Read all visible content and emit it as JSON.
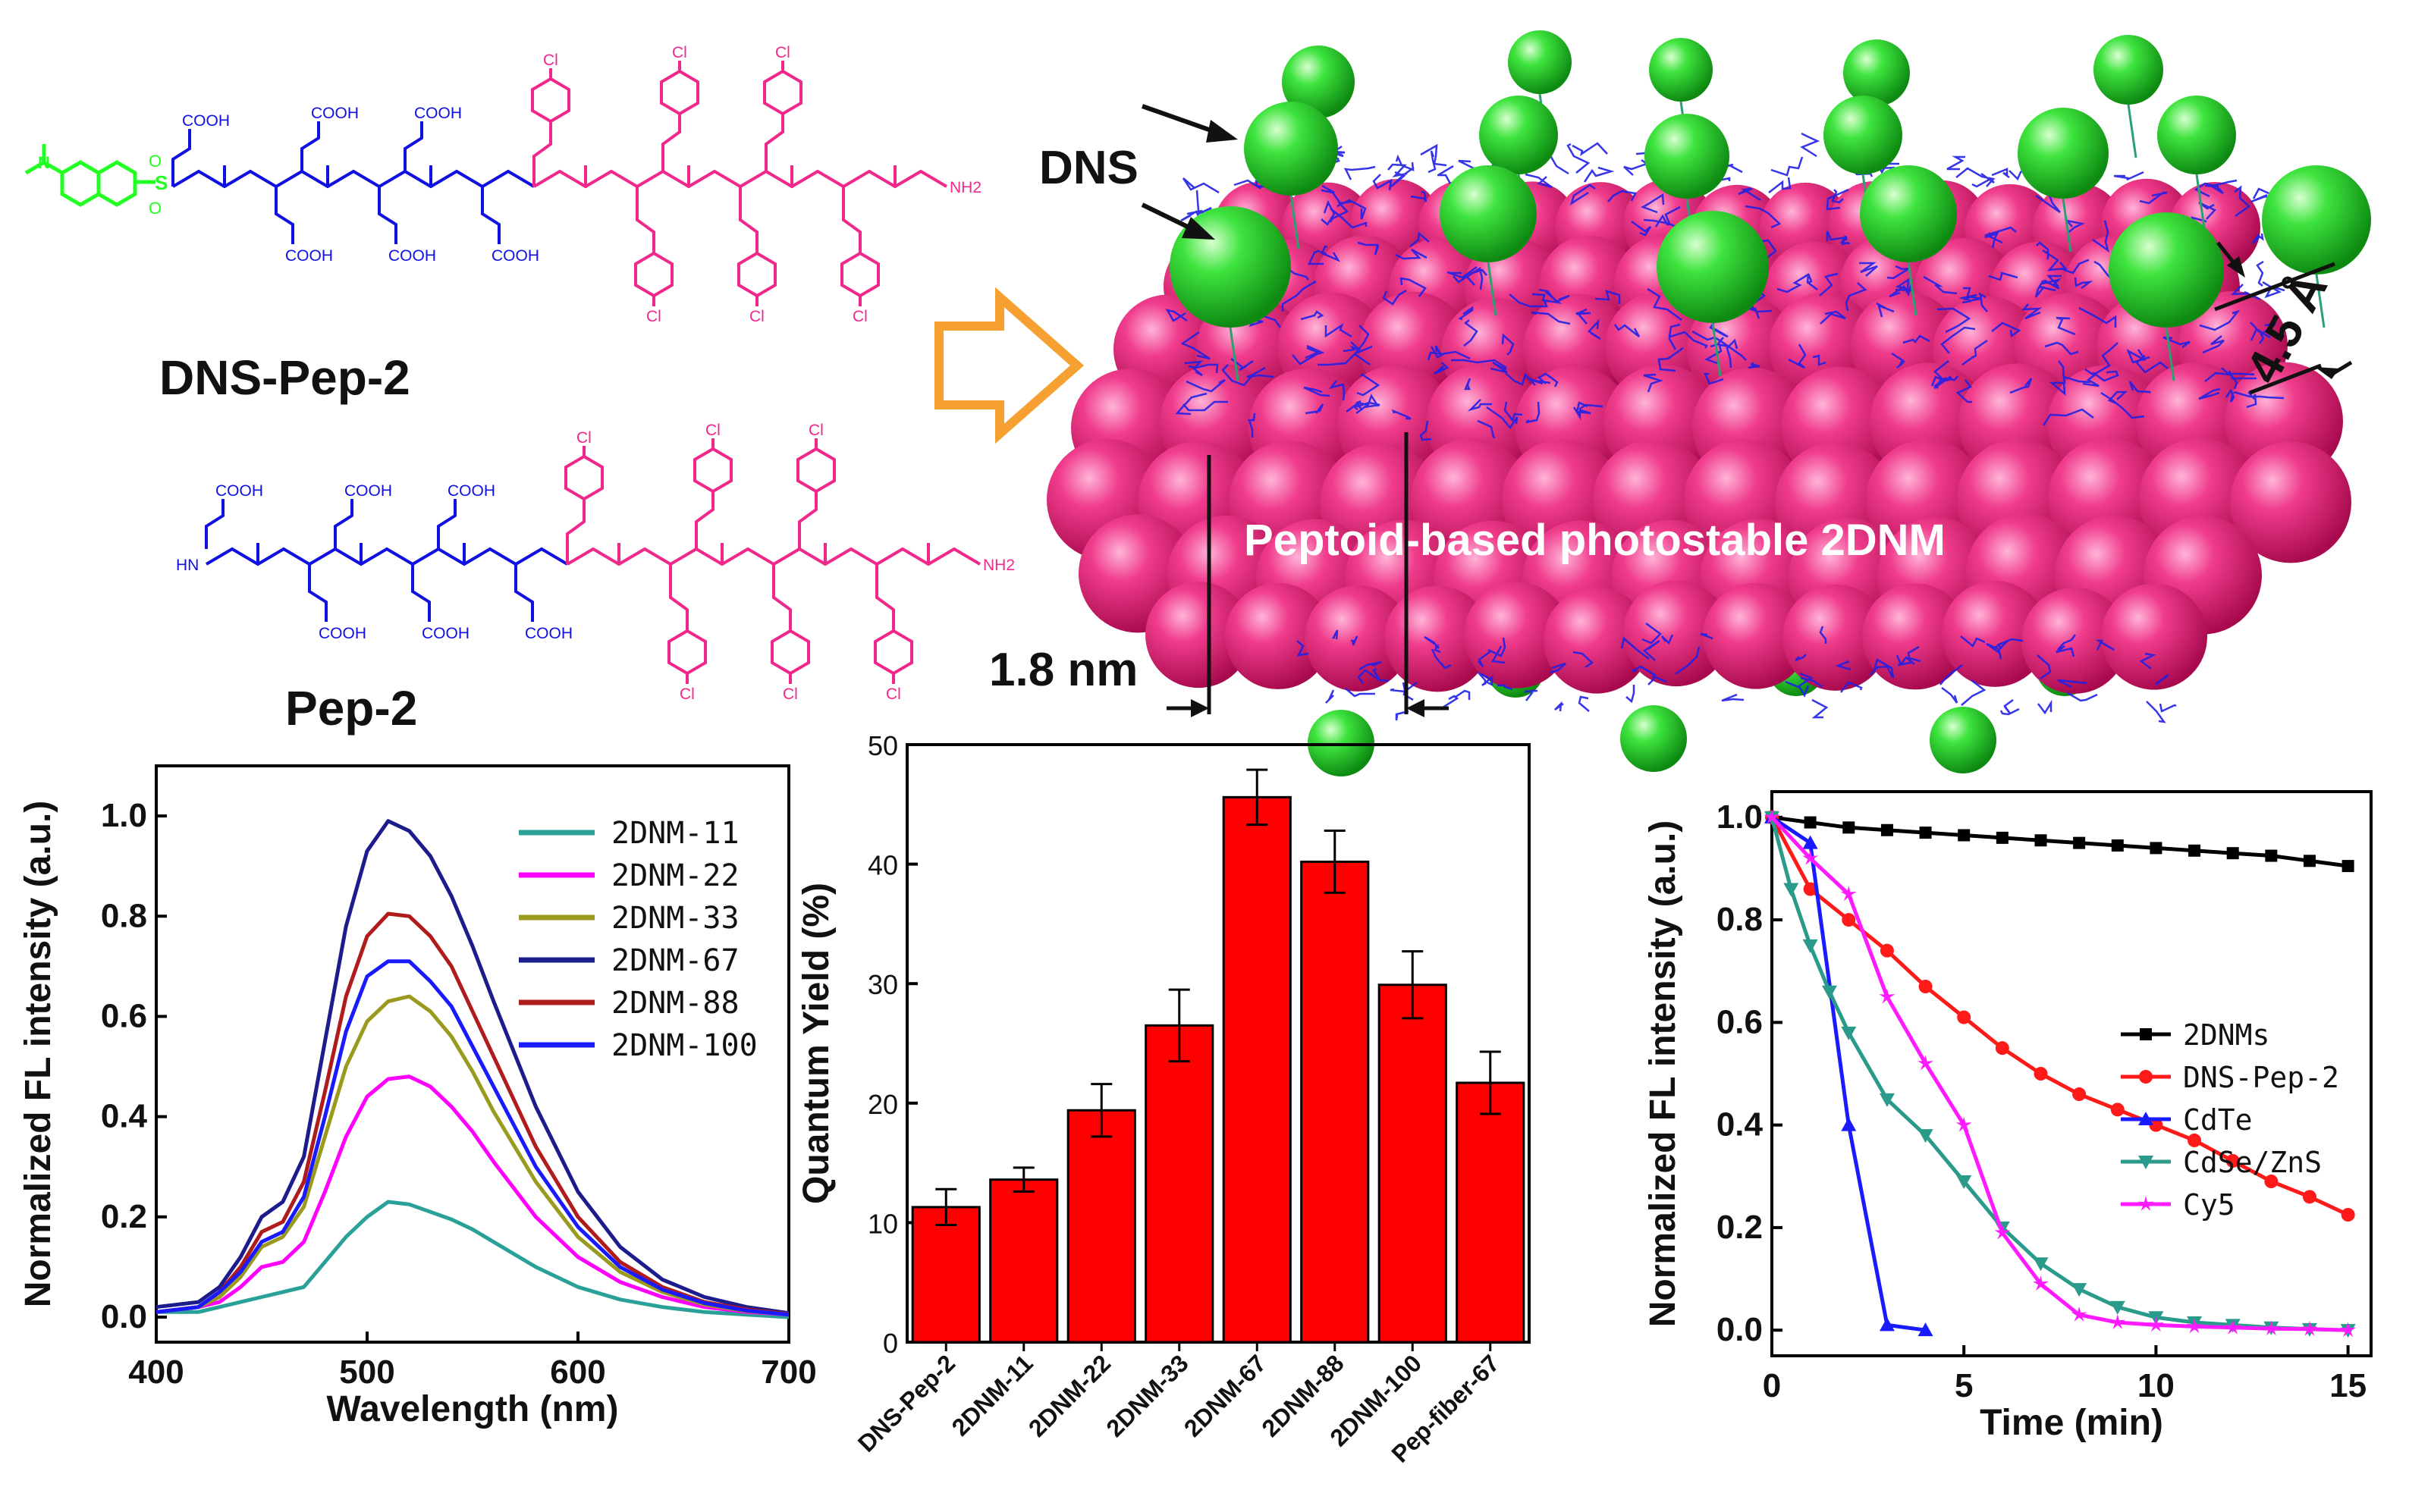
{
  "labels": {
    "dns_pep2_name": "DNS-Pep-2",
    "pep2_name": "Pep-2",
    "dns_callout": "DNS",
    "membrane_title": "Peptoid-based photostable 2DNM",
    "thickness_label": "1.8 nm",
    "spacing_label": "4.5 Å",
    "chem": {
      "cooh": "COOH",
      "nh2": "NH2",
      "cl": "Cl",
      "o": "O",
      "n": "N",
      "s": "S",
      "hn": "HN"
    }
  },
  "colors": {
    "dns_green": "#22ff22",
    "peptoid_blue": "#1010e0",
    "chloro_pink": "#f0288c",
    "membrane_pink": "#e0156e",
    "sphere_green": "#28c828",
    "arrow_orange": "#f5a030",
    "bar_red": "#ff0000"
  },
  "chart_data": [
    {
      "type": "line",
      "id": "fl-spectra",
      "xlabel": "Wavelength (nm)",
      "ylabel": "Normalized FL intensity (a.u.)",
      "xlim": [
        400,
        700
      ],
      "ylim": [
        -0.05,
        1.1
      ],
      "xticks": [
        400,
        500,
        600,
        700
      ],
      "yticks": [
        0.0,
        0.2,
        0.4,
        0.6,
        0.8,
        1.0
      ],
      "legend_position": "top-right",
      "x": [
        400,
        420,
        430,
        440,
        450,
        460,
        470,
        480,
        490,
        500,
        510,
        520,
        530,
        540,
        550,
        560,
        580,
        600,
        620,
        640,
        660,
        680,
        700
      ],
      "series": [
        {
          "name": "2DNM-11",
          "color": "#2aa198",
          "values": [
            0.01,
            0.01,
            0.02,
            0.03,
            0.04,
            0.05,
            0.06,
            0.11,
            0.16,
            0.2,
            0.23,
            0.225,
            0.21,
            0.195,
            0.175,
            0.15,
            0.1,
            0.06,
            0.035,
            0.02,
            0.01,
            0.005,
            0.0
          ]
        },
        {
          "name": "2DNM-22",
          "color": "#ff00ff",
          "values": [
            0.01,
            0.02,
            0.03,
            0.06,
            0.1,
            0.11,
            0.15,
            0.25,
            0.36,
            0.44,
            0.475,
            0.48,
            0.46,
            0.42,
            0.37,
            0.31,
            0.2,
            0.12,
            0.07,
            0.04,
            0.02,
            0.01,
            0.005
          ]
        },
        {
          "name": "2DNM-33",
          "color": "#9a9a1e",
          "values": [
            0.01,
            0.02,
            0.04,
            0.08,
            0.14,
            0.16,
            0.22,
            0.36,
            0.5,
            0.59,
            0.63,
            0.64,
            0.61,
            0.56,
            0.49,
            0.41,
            0.27,
            0.16,
            0.09,
            0.05,
            0.025,
            0.012,
            0.005
          ]
        },
        {
          "name": "2DNM-67",
          "color": "#1c1c8c",
          "values": [
            0.02,
            0.03,
            0.06,
            0.12,
            0.2,
            0.23,
            0.32,
            0.55,
            0.78,
            0.93,
            0.99,
            0.97,
            0.92,
            0.84,
            0.74,
            0.63,
            0.42,
            0.25,
            0.14,
            0.075,
            0.04,
            0.02,
            0.008
          ]
        },
        {
          "name": "2DNM-88",
          "color": "#b01c1c",
          "values": [
            0.01,
            0.02,
            0.05,
            0.1,
            0.17,
            0.19,
            0.27,
            0.45,
            0.64,
            0.76,
            0.805,
            0.8,
            0.76,
            0.7,
            0.61,
            0.52,
            0.34,
            0.2,
            0.11,
            0.06,
            0.03,
            0.015,
            0.006
          ]
        },
        {
          "name": "2DNM-100",
          "color": "#1a1aff",
          "values": [
            0.01,
            0.02,
            0.05,
            0.09,
            0.15,
            0.17,
            0.24,
            0.4,
            0.57,
            0.68,
            0.71,
            0.71,
            0.67,
            0.62,
            0.54,
            0.46,
            0.3,
            0.18,
            0.1,
            0.055,
            0.028,
            0.013,
            0.005
          ]
        }
      ]
    },
    {
      "type": "bar",
      "id": "quantum-yield",
      "ylabel": "Quantum Yield (%)",
      "ylim": [
        0,
        50
      ],
      "yticks": [
        0,
        10,
        20,
        30,
        40,
        50
      ],
      "categories": [
        "DNS-Pep-2",
        "2DNM-11",
        "2DNM-22",
        "2DNM-33",
        "2DNM-67",
        "2DNM-88",
        "2DNM-100",
        "Pep-fiber-67"
      ],
      "values": [
        11.3,
        13.6,
        19.4,
        26.5,
        45.6,
        40.2,
        29.9,
        21.7
      ],
      "errors": [
        1.5,
        1.0,
        2.2,
        3.0,
        2.3,
        2.6,
        2.8,
        2.6
      ]
    },
    {
      "type": "line",
      "id": "photostability",
      "xlabel": "Time (min)",
      "ylabel": "Normalized FL intensity (a.u.)",
      "xlim": [
        0,
        15.6
      ],
      "ylim": [
        -0.05,
        1.05
      ],
      "xticks": [
        0,
        5,
        10,
        15
      ],
      "yticks": [
        0.0,
        0.2,
        0.4,
        0.6,
        0.8,
        1.0
      ],
      "legend_position": "right",
      "series": [
        {
          "name": "2DNMs",
          "color": "#000000",
          "marker": "square",
          "x": [
            0,
            1,
            2,
            3,
            4,
            5,
            6,
            7,
            8,
            9,
            10,
            11,
            12,
            13,
            14,
            15
          ],
          "values": [
            1.0,
            0.99,
            0.98,
            0.975,
            0.97,
            0.965,
            0.96,
            0.955,
            0.95,
            0.945,
            0.94,
            0.935,
            0.93,
            0.925,
            0.915,
            0.905
          ]
        },
        {
          "name": "DNS-Pep-2",
          "color": "#ff1a1a",
          "marker": "circle",
          "x": [
            0,
            1,
            2,
            3,
            4,
            5,
            6,
            7,
            8,
            9,
            10,
            11,
            12,
            13,
            14,
            15
          ],
          "values": [
            1.0,
            0.86,
            0.8,
            0.74,
            0.67,
            0.61,
            0.55,
            0.5,
            0.46,
            0.43,
            0.4,
            0.37,
            0.33,
            0.29,
            0.26,
            0.225
          ]
        },
        {
          "name": "CdTe",
          "color": "#1a1aff",
          "marker": "triangle-up",
          "x": [
            0,
            1,
            2,
            3,
            4
          ],
          "values": [
            1.0,
            0.95,
            0.4,
            0.01,
            0.0
          ]
        },
        {
          "name": "CdSe/ZnS",
          "color": "#2a9a8a",
          "marker": "triangle-down",
          "x": [
            0,
            0.5,
            1,
            1.5,
            2,
            3,
            4,
            5,
            6,
            7,
            8,
            9,
            10,
            11,
            12,
            13,
            14,
            15
          ],
          "values": [
            1.0,
            0.86,
            0.75,
            0.66,
            0.58,
            0.45,
            0.38,
            0.29,
            0.2,
            0.13,
            0.08,
            0.045,
            0.025,
            0.015,
            0.01,
            0.005,
            0.002,
            0.0
          ]
        },
        {
          "name": "Cy5",
          "color": "#ff1aff",
          "marker": "star",
          "x": [
            0,
            1,
            2,
            3,
            4,
            5,
            6,
            7,
            8,
            9,
            10,
            11,
            12,
            13,
            14,
            15
          ],
          "values": [
            1.0,
            0.92,
            0.85,
            0.65,
            0.52,
            0.4,
            0.19,
            0.09,
            0.03,
            0.015,
            0.01,
            0.007,
            0.005,
            0.003,
            0.002,
            0.0
          ]
        }
      ]
    }
  ]
}
